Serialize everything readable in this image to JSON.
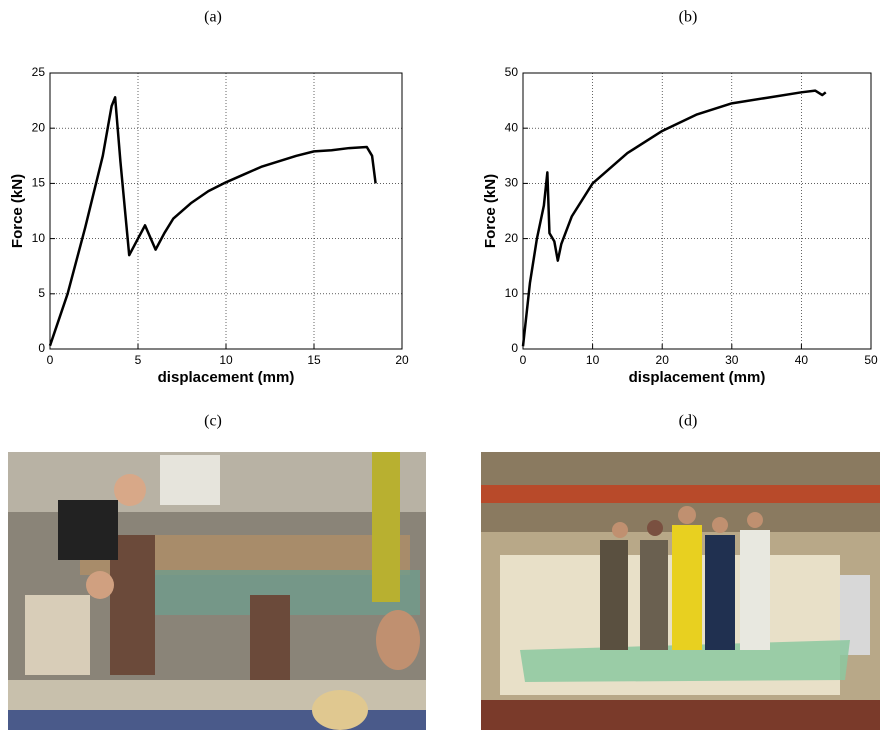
{
  "chart_data": [
    {
      "type": "line",
      "panel_label": "(a)",
      "xlabel": "displacement (mm)",
      "ylabel": "Force (kN)",
      "x": [
        0,
        1,
        2,
        3,
        3.5,
        3.7,
        4,
        4.5,
        5,
        5.4,
        6,
        6.5,
        7,
        8,
        9,
        10,
        11,
        12,
        13,
        14,
        15,
        16,
        17,
        18,
        18.3,
        18.5
      ],
      "values": [
        0.3,
        5,
        11,
        17.5,
        22,
        22.8,
        17,
        8.5,
        10,
        11.2,
        9,
        10.5,
        11.8,
        13.2,
        14.3,
        15.1,
        15.8,
        16.5,
        17,
        17.5,
        17.9,
        18,
        18.2,
        18.3,
        17.5,
        15
      ],
      "color": "#000000",
      "xlim": [
        0,
        20
      ],
      "ylim": [
        0,
        25
      ],
      "xticks": [
        0,
        5,
        10,
        15,
        20
      ],
      "yticks": [
        0,
        5,
        10,
        15,
        20,
        25
      ],
      "grid": true
    },
    {
      "type": "line",
      "panel_label": "(b)",
      "xlabel": "displacement (mm)",
      "ylabel": "Force (kN)",
      "x": [
        0,
        1,
        2,
        3,
        3.5,
        3.8,
        4.5,
        5,
        5.5,
        7,
        10,
        15,
        20,
        25,
        30,
        35,
        40,
        42,
        43,
        43.5
      ],
      "values": [
        0.5,
        12,
        20,
        26,
        32,
        21,
        19.5,
        16,
        19,
        24,
        30,
        35.5,
        39.5,
        42.5,
        44.5,
        45.5,
        46.5,
        46.8,
        46,
        46.5
      ],
      "color": "#000000",
      "xlim": [
        0,
        50
      ],
      "ylim": [
        0,
        50
      ],
      "xticks": [
        0,
        10,
        20,
        30,
        40,
        50
      ],
      "yticks": [
        0,
        10,
        20,
        30,
        40,
        50
      ],
      "grid": true
    }
  ],
  "photos": [
    {
      "label": "(c)"
    },
    {
      "label": "(d)"
    }
  ]
}
